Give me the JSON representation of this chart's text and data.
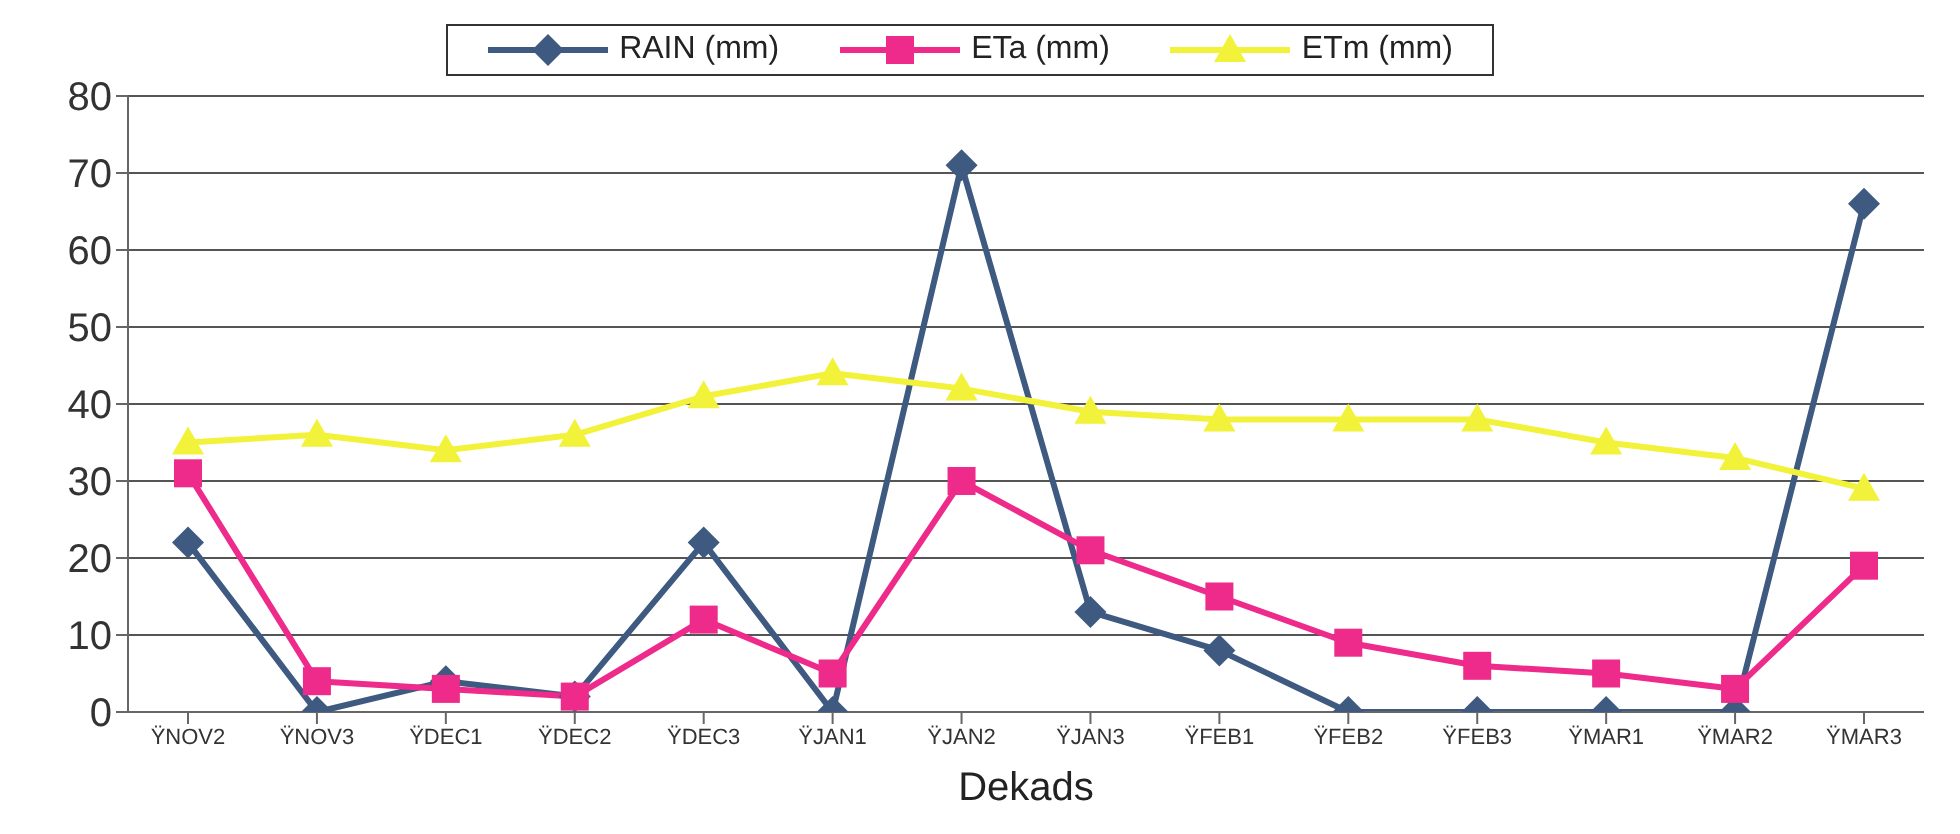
{
  "chart_data": {
    "type": "line",
    "xlabel": "Dekads",
    "categories": [
      "ŸNOV2",
      "ŸNOV3",
      "ŸDEC1",
      "ŸDEC2",
      "ŸDEC3",
      "ŸJAN1",
      "ŸJAN2",
      "ŸJAN3",
      "ŸFEB1",
      "ŸFEB2",
      "ŸFEB3",
      "ŸMAR1",
      "ŸMAR2",
      "ŸMAR3"
    ],
    "series": [
      {
        "name": "RAIN (mm)",
        "color": "#3e5a80",
        "marker": "diamond",
        "values": [
          22,
          0,
          4,
          2,
          22,
          0,
          71,
          13,
          8,
          0,
          0,
          0,
          0,
          66
        ]
      },
      {
        "name": "ETa (mm)",
        "color": "#ee2a8a",
        "marker": "square",
        "values": [
          31,
          4,
          3,
          2,
          12,
          5,
          30,
          21,
          15,
          9,
          6,
          5,
          3,
          19
        ]
      },
      {
        "name": "ETm (mm)",
        "color": "#f2f23a",
        "marker": "triangle",
        "values": [
          35,
          36,
          34,
          36,
          41,
          44,
          42,
          39,
          38,
          38,
          38,
          35,
          33,
          29
        ]
      }
    ],
    "ylim": [
      0,
      80
    ],
    "yticks": [
      0,
      10,
      20,
      30,
      40,
      50,
      60,
      70,
      80
    ],
    "grid": "y",
    "legend": "top",
    "line_style": "solid"
  }
}
